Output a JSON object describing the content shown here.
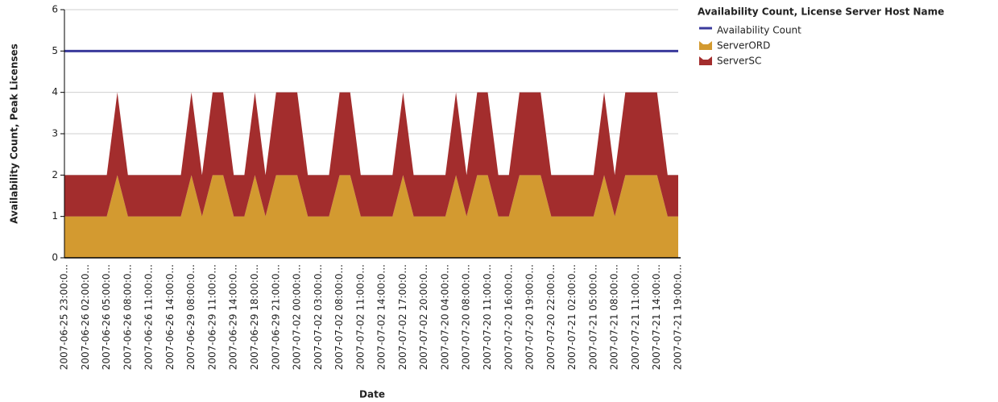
{
  "chart_data": {
    "type": "area",
    "stacked": true,
    "legend_title": "Availability Count, License Server Host Name",
    "xlabel": "Date",
    "ylabel": "Availability Count, Peak Licenses",
    "categories": [
      "2007-06-25 23:00:0...",
      null,
      "2007-06-26 02:00:0...",
      null,
      "2007-06-26 05:00:0...",
      null,
      "2007-06-26 08:00:0...",
      null,
      "2007-06-26 11:00:0...",
      null,
      "2007-06-26 14:00:0...",
      null,
      "2007-06-29 08:00:0...",
      null,
      "2007-06-29 11:00:0...",
      null,
      "2007-06-29 14:00:0...",
      null,
      "2007-06-29 18:00:0...",
      null,
      "2007-06-29 21:00:0...",
      null,
      "2007-07-02 00:00:0...",
      null,
      "2007-07-02 03:00:0...",
      null,
      "2007-07-02 08:00:0...",
      null,
      "2007-07-02 11:00:0...",
      null,
      "2007-07-02 14:00:0...",
      null,
      "2007-07-02 17:00:0...",
      null,
      "2007-07-02 20:00:0...",
      null,
      "2007-07-20 04:00:0...",
      null,
      "2007-07-20 08:00:0...",
      null,
      "2007-07-20 11:00:0...",
      null,
      "2007-07-20 16:00:0...",
      null,
      "2007-07-20 19:00:0...",
      null,
      "2007-07-20 22:00:0...",
      null,
      "2007-07-21 02:00:0...",
      null,
      "2007-07-21 05:00:0...",
      null,
      "2007-07-21 08:00:0...",
      null,
      "2007-07-21 11:00:0...",
      null,
      "2007-07-21 14:00:0...",
      null,
      "2007-07-21 19:00:0..."
    ],
    "series": [
      {
        "name": "Availability Count",
        "type": "line",
        "color": "#3a3a9c",
        "values": [
          5,
          5,
          5,
          5,
          5,
          5,
          5,
          5,
          5,
          5,
          5,
          5,
          5,
          5,
          5,
          5,
          5,
          5,
          5,
          5,
          5,
          5,
          5,
          5,
          5,
          5,
          5,
          5,
          5,
          5,
          5,
          5,
          5,
          5,
          5,
          5,
          5,
          5,
          5,
          5,
          5,
          5,
          5,
          5,
          5,
          5,
          5,
          5,
          5,
          5,
          5,
          5,
          5,
          5,
          5,
          5,
          5,
          5,
          5
        ]
      },
      {
        "name": "ServerORD",
        "color": "#d39a30",
        "values": [
          1,
          1,
          1,
          1,
          1,
          2,
          1,
          1,
          1,
          1,
          1,
          1,
          2,
          1,
          2,
          2,
          1,
          1,
          2,
          1,
          2,
          2,
          2,
          1,
          1,
          1,
          2,
          2,
          1,
          1,
          1,
          1,
          2,
          1,
          1,
          1,
          1,
          2,
          1,
          2,
          2,
          1,
          1,
          2,
          2,
          2,
          1,
          1,
          1,
          1,
          1,
          2,
          1,
          2,
          2,
          2,
          2,
          1,
          1
        ]
      },
      {
        "name": "ServerSC",
        "color": "#a32d2d",
        "values": [
          1,
          1,
          1,
          1,
          1,
          2,
          1,
          1,
          1,
          1,
          1,
          1,
          2,
          1,
          2,
          2,
          1,
          1,
          2,
          1,
          2,
          2,
          2,
          1,
          1,
          1,
          2,
          2,
          1,
          1,
          1,
          1,
          2,
          1,
          1,
          1,
          1,
          2,
          1,
          2,
          2,
          1,
          1,
          2,
          2,
          2,
          1,
          1,
          1,
          1,
          1,
          2,
          1,
          2,
          2,
          2,
          2,
          1,
          1
        ]
      }
    ],
    "ylim": [
      0,
      6
    ],
    "yticks": [
      0,
      1,
      2,
      3,
      4,
      5,
      6
    ],
    "grid": true
  }
}
